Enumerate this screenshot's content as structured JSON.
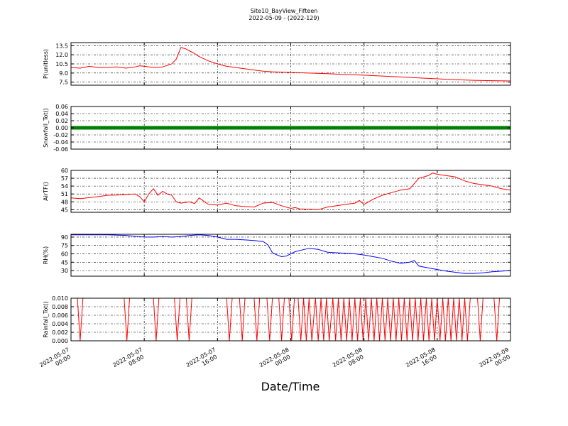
{
  "figure": {
    "title_line1": "Site10_BayView_Fifteen",
    "title_line2": "2022-05-09 - (2022-129)",
    "xlabel": "Date/Time"
  },
  "chart_data": [
    {
      "type": "line",
      "ylabel": "P(unitless)",
      "color": "#ff0000",
      "ylim": [
        7.0,
        14.0
      ],
      "yticks": [
        "7.5",
        "9.0",
        "10.5",
        "12.0",
        "13.5"
      ],
      "ytick_values": [
        7.5,
        9.0,
        10.5,
        12.0,
        13.5
      ],
      "x_hours": [
        0,
        1,
        2,
        3,
        4,
        5,
        6,
        7,
        7.5,
        8,
        9,
        10,
        11,
        11.5,
        12,
        12.5,
        13,
        13.5,
        14,
        15,
        16,
        17,
        18,
        19,
        20,
        21,
        22,
        24,
        26,
        28,
        30,
        32,
        34,
        36,
        38,
        40,
        42,
        44,
        46,
        48
      ],
      "values": [
        9.9,
        9.8,
        10.1,
        9.9,
        9.9,
        10.0,
        9.8,
        10.0,
        10.2,
        10.1,
        9.9,
        10.0,
        10.5,
        11.3,
        13.2,
        13.0,
        12.6,
        12.2,
        11.7,
        11.0,
        10.5,
        10.1,
        9.9,
        9.7,
        9.5,
        9.3,
        9.2,
        9.1,
        9.0,
        8.9,
        8.75,
        8.65,
        8.5,
        8.35,
        8.2,
        8.05,
        7.9,
        7.8,
        7.75,
        7.7
      ]
    },
    {
      "type": "scatter",
      "ylabel": "Snowfall_Tot()",
      "color": "#007f00",
      "ylim": [
        -0.06,
        0.06
      ],
      "yticks": [
        "-0.06",
        "-0.04",
        "-0.02",
        "0.00",
        "0.02",
        "0.04",
        "0.06"
      ],
      "ytick_values": [
        -0.06,
        -0.04,
        -0.02,
        0.0,
        0.02,
        0.04,
        0.06
      ],
      "x_range_hours": [
        0,
        48
      ],
      "constant_value": 0.0
    },
    {
      "type": "line",
      "ylabel": "AirTF()",
      "color": "#ff0000",
      "ylim": [
        44,
        60
      ],
      "yticks": [
        "45",
        "48",
        "51",
        "54",
        "57",
        "60"
      ],
      "ytick_values": [
        45,
        48,
        51,
        54,
        57,
        60
      ],
      "x_hours": [
        0,
        1,
        2,
        3,
        4,
        5,
        6,
        7,
        7.5,
        8,
        8.5,
        9,
        9.5,
        10,
        10.5,
        11,
        11.5,
        12,
        12.5,
        13,
        13.5,
        14,
        15,
        16,
        17,
        18,
        19,
        20,
        21,
        22,
        23,
        24,
        24.5,
        25,
        26,
        27,
        28,
        29,
        30,
        31,
        31.5,
        32,
        33,
        34,
        35,
        36,
        37,
        38,
        38.5,
        39,
        39.5,
        40,
        41,
        42,
        43,
        44,
        45,
        46,
        47,
        48
      ],
      "values": [
        49.5,
        49.2,
        49.6,
        50.0,
        50.5,
        50.6,
        50.8,
        51.0,
        50.0,
        48.0,
        51.0,
        53.0,
        50.5,
        52.0,
        51.0,
        50.5,
        48.0,
        47.5,
        47.8,
        48.0,
        47.3,
        49.5,
        47.0,
        46.8,
        47.5,
        46.5,
        46.2,
        46.0,
        47.5,
        47.8,
        46.5,
        45.5,
        45.8,
        45.3,
        45.2,
        45.0,
        46.0,
        46.5,
        47.0,
        47.5,
        48.5,
        47.0,
        49.0,
        50.5,
        51.5,
        52.5,
        53.0,
        57.0,
        57.5,
        58.0,
        59.0,
        58.5,
        58.0,
        57.5,
        56.0,
        55.0,
        54.5,
        54.0,
        53.0,
        52.5
      ]
    },
    {
      "type": "line",
      "ylabel": "RH(%)",
      "color": "#0000ff",
      "ylim": [
        20,
        95
      ],
      "yticks": [
        "30",
        "45",
        "60",
        "75",
        "90"
      ],
      "ytick_values": [
        30,
        45,
        60,
        75,
        90
      ],
      "x_hours": [
        0,
        2,
        4,
        6,
        8,
        9,
        10,
        11,
        12,
        13,
        14,
        15,
        16,
        17,
        18,
        19,
        20,
        21,
        21.5,
        22,
        22.5,
        23,
        23.5,
        24,
        24.5,
        25,
        26,
        27,
        28,
        29,
        30,
        31,
        32,
        33,
        34,
        35,
        36,
        37,
        37.5,
        38,
        39,
        40,
        41,
        42,
        43,
        44,
        45,
        46,
        47,
        48
      ],
      "values": [
        94,
        94,
        94,
        93,
        90,
        90,
        91,
        90,
        91,
        93,
        94,
        93,
        90,
        86,
        86,
        85,
        84,
        82,
        76,
        62,
        58,
        55,
        56,
        60,
        64,
        66,
        70,
        68,
        63,
        62,
        61,
        60,
        58,
        55,
        52,
        47,
        43,
        45,
        48,
        38,
        35,
        32,
        29,
        27,
        25,
        25,
        26,
        28,
        29,
        30
      ]
    },
    {
      "type": "line",
      "ylabel": "Rainfall_Tot()",
      "color": "#ff0000",
      "ylim": [
        0.0,
        0.01
      ],
      "yticks": [
        "0.000",
        "0.002",
        "0.004",
        "0.006",
        "0.008",
        "0.010"
      ],
      "ytick_values": [
        0.0,
        0.002,
        0.004,
        0.006,
        0.008,
        0.01
      ],
      "x_hours": [
        0,
        0.7,
        1.0,
        1.3,
        1.6,
        5.8,
        6.1,
        6.4,
        9.0,
        9.3,
        9.6,
        11.3,
        11.6,
        11.9,
        12.6,
        12.9,
        13.2,
        17.0,
        17.3,
        17.6,
        18.4,
        18.7,
        19.0,
        20.0,
        20.3,
        20.6,
        21.4,
        21.7,
        22.0,
        22.7,
        23.0,
        23.3,
        23.8,
        24.1,
        24.4,
        24.8,
        25.1,
        25.4,
        25.7,
        26.0,
        26.3,
        26.7,
        27.0,
        27.3,
        27.6,
        27.9,
        28.2,
        28.6,
        28.9,
        29.2,
        29.5,
        29.8,
        30.1,
        30.4,
        30.7,
        31.0,
        31.3,
        31.6,
        31.9,
        32.2,
        32.5,
        32.8,
        33.1,
        33.4,
        33.7,
        34.0,
        34.3,
        34.6,
        34.9,
        35.2,
        35.5,
        35.8,
        36.1,
        36.4,
        36.7,
        37.0,
        37.3,
        37.6,
        37.9,
        38.2,
        38.5,
        38.8,
        39.1,
        39.4,
        39.7,
        40.0,
        40.3,
        40.6,
        40.9,
        41.2,
        41.5,
        41.8,
        42.1,
        42.4,
        42.7,
        43.0,
        43.3,
        43.6,
        44.4,
        44.7,
        45.0,
        46.2,
        46.5,
        46.8,
        47.2,
        48
      ],
      "values": [
        0.01,
        0.01,
        0.0,
        0.01,
        0.01,
        0.01,
        0.0,
        0.01,
        0.01,
        0.0,
        0.01,
        0.01,
        0.0,
        0.01,
        0.01,
        0.0,
        0.01,
        0.01,
        0.0,
        0.01,
        0.01,
        0.0,
        0.01,
        0.01,
        0.0,
        0.01,
        0.01,
        0.0,
        0.01,
        0.01,
        0.0,
        0.01,
        0.01,
        0.0,
        0.01,
        0.01,
        0.0,
        0.01,
        0.0,
        0.01,
        0.0,
        0.01,
        0.0,
        0.01,
        0.0,
        0.01,
        0.0,
        0.01,
        0.0,
        0.01,
        0.0,
        0.01,
        0.0,
        0.01,
        0.0,
        0.01,
        0.0,
        0.01,
        0.0,
        0.01,
        0.0,
        0.01,
        0.0,
        0.01,
        0.0,
        0.01,
        0.0,
        0.01,
        0.0,
        0.01,
        0.0,
        0.01,
        0.0,
        0.01,
        0.0,
        0.01,
        0.0,
        0.01,
        0.0,
        0.01,
        0.0,
        0.01,
        0.0,
        0.01,
        0.0,
        0.01,
        0.0,
        0.01,
        0.0,
        0.01,
        0.0,
        0.01,
        0.0,
        0.01,
        0.0,
        0.01,
        0.0,
        0.01,
        0.01,
        0.0,
        0.01,
        0.01,
        0.0,
        0.01,
        0.01,
        0.01
      ]
    }
  ],
  "x_axis": {
    "range_hours": [
      0,
      48
    ],
    "tick_hours": [
      0,
      8,
      16,
      24,
      32,
      40,
      48
    ],
    "tick_labels": [
      [
        "2022-05-07",
        "00:00"
      ],
      [
        "2022-05-07",
        "08:00"
      ],
      [
        "2022-05-07",
        "16:00"
      ],
      [
        "2022-05-08",
        "00:00"
      ],
      [
        "2022-05-08",
        "08:00"
      ],
      [
        "2022-05-08",
        "16:00"
      ],
      [
        "2022-05-09",
        "00:00"
      ]
    ]
  }
}
